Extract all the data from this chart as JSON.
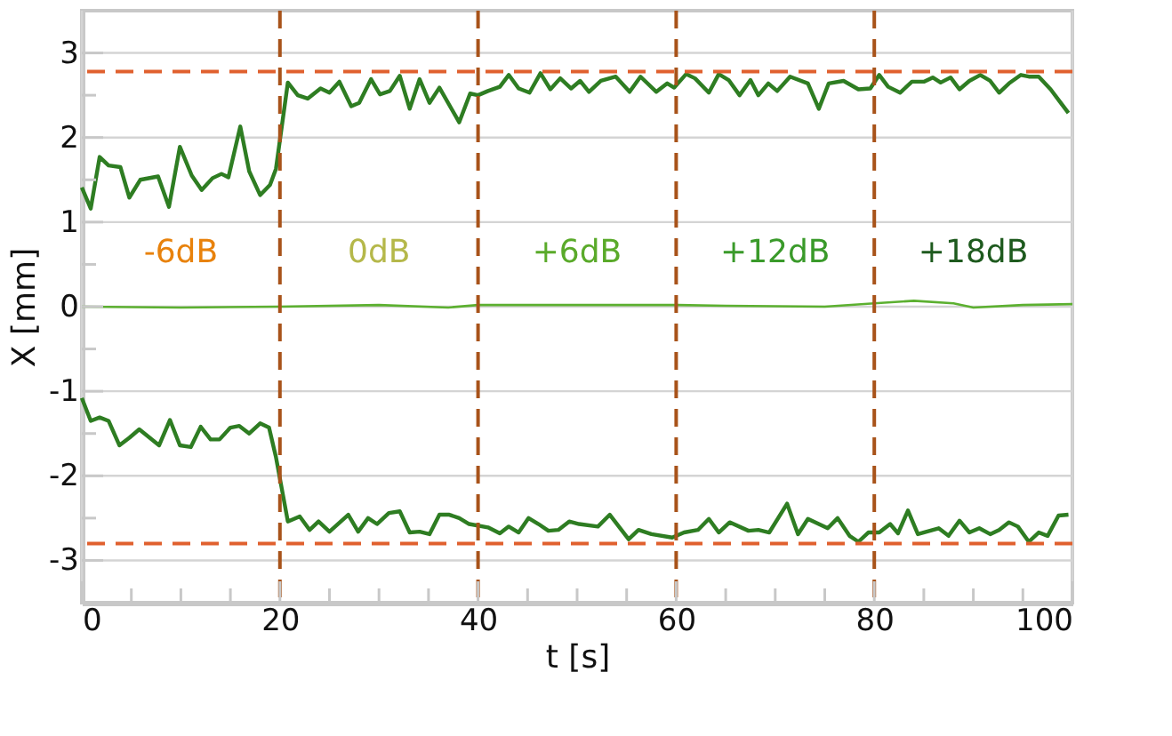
{
  "chart_data": {
    "type": "line",
    "xlabel": "t [s]",
    "ylabel": "X [mm]",
    "xlim": [
      0,
      100
    ],
    "ylim": [
      -3.5,
      3.5
    ],
    "xticks": [
      0,
      {
        "value": 5,
        "label": null
      },
      {
        "value": 10,
        "label": null
      },
      {
        "value": 15,
        "label": null
      },
      20,
      {
        "value": 25,
        "label": null
      },
      {
        "value": 30,
        "label": null
      },
      {
        "value": 35,
        "label": null
      },
      40,
      {
        "value": 45,
        "label": null
      },
      {
        "value": 50,
        "label": null
      },
      {
        "value": 55,
        "label": null
      },
      60,
      {
        "value": 65,
        "label": null
      },
      {
        "value": 70,
        "label": null
      },
      {
        "value": 75,
        "label": null
      },
      80,
      {
        "value": 85,
        "label": null
      },
      {
        "value": 90,
        "label": null
      },
      {
        "value": 95,
        "label": null
      },
      100
    ],
    "yticks": [
      -3,
      {
        "value": -2.5,
        "label": null
      },
      -2,
      {
        "value": -1.5,
        "label": null
      },
      -1,
      {
        "value": -0.5,
        "label": null
      },
      0,
      {
        "value": 0.5,
        "label": null
      },
      1,
      {
        "value": 1.5,
        "label": null
      },
      2,
      {
        "value": 2.5,
        "label": null
      },
      3
    ],
    "grid": true,
    "marker": "none",
    "line_style": "solid",
    "series": [
      {
        "color": "#2e7d22",
        "x": [
          0,
          0.9,
          1.8,
          2.7,
          3.9,
          4.8,
          5.9,
          7.7,
          8.8,
          9.9,
          11.1,
          12.1,
          13.2,
          14.1,
          14.8,
          16,
          16.9,
          18,
          19,
          19.6,
          20.8,
          21.8,
          22.8,
          24.1,
          25,
          26,
          27.2,
          28,
          29.2,
          30.1,
          31.1,
          32.1,
          33.1,
          34.1,
          35.1,
          36.1,
          38.1,
          39.2,
          40,
          41,
          42.2,
          43.1,
          44.1,
          45.2,
          46.3,
          47.3,
          48.3,
          49.4,
          50.3,
          51.2,
          52.4,
          53.9,
          55.3,
          56.4,
          58,
          59.1,
          59.8,
          61,
          61.9,
          63.3,
          64.3,
          65.3,
          66.4,
          67.5,
          68.3,
          69.3,
          70.2,
          71.5,
          73.3,
          74.4,
          75.4,
          76.9,
          78.4,
          79.6,
          80.5,
          81.4,
          82.6,
          83.8,
          85,
          85.9,
          86.7,
          87.7,
          88.6,
          89.6,
          90.7,
          91.7,
          92.6,
          93.6,
          94.8,
          95.6,
          96.6,
          97.8,
          98.7,
          99.6
        ],
        "values": [
          1.41,
          1.16,
          1.77,
          1.67,
          1.65,
          1.29,
          1.5,
          1.54,
          1.18,
          1.89,
          1.55,
          1.38,
          1.52,
          1.57,
          1.53,
          2.13,
          1.6,
          1.32,
          1.44,
          1.63,
          2.65,
          2.5,
          2.46,
          2.58,
          2.53,
          2.66,
          2.37,
          2.41,
          2.69,
          2.51,
          2.55,
          2.73,
          2.34,
          2.69,
          2.41,
          2.59,
          2.18,
          2.52,
          2.5,
          2.55,
          2.6,
          2.74,
          2.58,
          2.53,
          2.76,
          2.57,
          2.7,
          2.58,
          2.67,
          2.54,
          2.67,
          2.72,
          2.54,
          2.72,
          2.54,
          2.64,
          2.59,
          2.75,
          2.7,
          2.53,
          2.75,
          2.68,
          2.5,
          2.68,
          2.5,
          2.64,
          2.55,
          2.72,
          2.64,
          2.34,
          2.64,
          2.67,
          2.57,
          2.58,
          2.74,
          2.6,
          2.53,
          2.66,
          2.66,
          2.71,
          2.65,
          2.71,
          2.57,
          2.67,
          2.74,
          2.67,
          2.53,
          2.64,
          2.74,
          2.72,
          2.72,
          2.57,
          2.43,
          2.29
        ]
      },
      {
        "color": "#5cb030",
        "x": [
          0,
          10,
          20,
          30,
          37,
          40,
          50,
          60,
          65,
          75,
          80,
          84,
          88,
          90,
          95,
          100
        ],
        "values": [
          0,
          -0.01,
          0,
          0.02,
          -0.01,
          0.02,
          0.02,
          0.02,
          0.01,
          0,
          0.04,
          0.07,
          0.04,
          -0.01,
          0.02,
          0.03
        ]
      },
      {
        "color": "#2e7d22",
        "x": [
          0,
          0.9,
          1.8,
          2.7,
          3.8,
          4.8,
          5.8,
          7.8,
          8.9,
          9.9,
          11,
          12,
          13,
          13.9,
          15,
          15.9,
          16.9,
          18,
          18.9,
          19.6,
          20.8,
          22,
          23,
          23.9,
          25,
          26.9,
          27.9,
          28.9,
          29.8,
          31,
          32.1,
          33.1,
          34.1,
          35.1,
          36.1,
          37.1,
          38.1,
          39.1,
          41,
          42.2,
          43.1,
          44.1,
          45.1,
          46.1,
          47.1,
          48.1,
          49.2,
          50.2,
          52.1,
          53.3,
          55.2,
          56.2,
          57.5,
          59.6,
          60.8,
          62.2,
          63.3,
          64.3,
          65.4,
          67.3,
          68.3,
          69.4,
          71.2,
          72.3,
          73.3,
          75.3,
          76.3,
          77.5,
          78.4,
          79.4,
          80.5,
          81.6,
          82.4,
          83.4,
          84.4,
          86.5,
          87.5,
          88.6,
          89.6,
          90.6,
          91.7,
          92.6,
          93.6,
          94.5,
          95.6,
          96.6,
          97.5,
          98.6,
          99.6
        ],
        "values": [
          -1.08,
          -1.35,
          -1.31,
          -1.35,
          -1.64,
          -1.55,
          -1.45,
          -1.64,
          -1.34,
          -1.64,
          -1.66,
          -1.42,
          -1.57,
          -1.57,
          -1.43,
          -1.41,
          -1.5,
          -1.38,
          -1.43,
          -1.78,
          -2.54,
          -2.48,
          -2.64,
          -2.54,
          -2.66,
          -2.46,
          -2.66,
          -2.5,
          -2.57,
          -2.44,
          -2.42,
          -2.67,
          -2.66,
          -2.69,
          -2.46,
          -2.46,
          -2.5,
          -2.57,
          -2.61,
          -2.68,
          -2.6,
          -2.67,
          -2.5,
          -2.57,
          -2.65,
          -2.64,
          -2.54,
          -2.57,
          -2.6,
          -2.46,
          -2.75,
          -2.64,
          -2.69,
          -2.73,
          -2.67,
          -2.64,
          -2.51,
          -2.67,
          -2.55,
          -2.65,
          -2.64,
          -2.67,
          -2.33,
          -2.69,
          -2.51,
          -2.62,
          -2.5,
          -2.71,
          -2.78,
          -2.67,
          -2.67,
          -2.57,
          -2.68,
          -2.41,
          -2.69,
          -2.62,
          -2.71,
          -2.53,
          -2.67,
          -2.62,
          -2.69,
          -2.64,
          -2.55,
          -2.6,
          -2.78,
          -2.67,
          -2.71,
          -2.47,
          -2.46
        ]
      }
    ],
    "ref_lines": [
      {
        "axis": "y",
        "value": 2.78,
        "color": "#e0602e",
        "line_style": "dashed"
      },
      {
        "axis": "y",
        "value": -2.8,
        "color": "#e0602e",
        "line_style": "dashed"
      },
      {
        "axis": "x",
        "value": 20,
        "color": "#a8531a",
        "line_style": "dashed"
      },
      {
        "axis": "x",
        "value": 40,
        "color": "#a8531a",
        "line_style": "dashed"
      },
      {
        "axis": "x",
        "value": 60,
        "color": "#a8531a",
        "line_style": "dashed"
      },
      {
        "axis": "x",
        "value": 80,
        "color": "#a8531a",
        "line_style": "dashed"
      }
    ],
    "annotations": [
      "-6dB",
      "0dB",
      "+6dB",
      "+12dB",
      "+18dB"
    ]
  }
}
